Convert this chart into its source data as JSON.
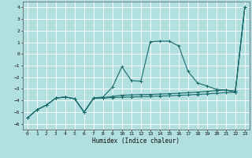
{
  "xlabel": "Humidex (Indice chaleur)",
  "xlim": [
    -0.5,
    23.5
  ],
  "ylim": [
    -6.5,
    4.5
  ],
  "yticks": [
    -6,
    -5,
    -4,
    -3,
    -2,
    -1,
    0,
    1,
    2,
    3,
    4
  ],
  "xticks": [
    0,
    1,
    2,
    3,
    4,
    5,
    6,
    7,
    8,
    9,
    10,
    11,
    12,
    13,
    14,
    15,
    16,
    17,
    18,
    19,
    20,
    21,
    22,
    23
  ],
  "bg_color": "#b2dfdf",
  "grid_color": "#d0eeee",
  "line_color": "#1a6b6b",
  "curve1_x": [
    0,
    1,
    2,
    3,
    4,
    5,
    6,
    7,
    8,
    9,
    10,
    11,
    12,
    13,
    14,
    15,
    16,
    17,
    18,
    19,
    20,
    21,
    22,
    23
  ],
  "curve1_y": [
    -5.5,
    -4.8,
    -4.4,
    -3.8,
    -3.7,
    -3.85,
    -5.0,
    -3.8,
    -3.7,
    -2.85,
    -1.1,
    -2.3,
    -2.35,
    1.05,
    1.1,
    1.1,
    0.7,
    -1.5,
    -2.5,
    -2.75,
    -3.05,
    -3.1,
    -3.3,
    4.0
  ],
  "curve2_x": [
    0,
    1,
    2,
    3,
    4,
    5,
    6,
    7,
    8,
    9,
    10,
    11,
    12,
    13,
    14,
    15,
    16,
    17,
    18,
    19,
    20,
    21,
    22,
    23
  ],
  "curve2_y": [
    -5.5,
    -4.8,
    -4.4,
    -3.8,
    -3.7,
    -3.85,
    -5.0,
    -3.8,
    -3.75,
    -3.65,
    -3.55,
    -3.52,
    -3.5,
    -3.48,
    -3.45,
    -3.42,
    -3.38,
    -3.33,
    -3.28,
    -3.22,
    -3.15,
    -3.1,
    -3.18,
    4.0
  ],
  "curve3_x": [
    0,
    1,
    2,
    3,
    4,
    5,
    6,
    7,
    8,
    9,
    10,
    11,
    12,
    13,
    14,
    15,
    16,
    17,
    18,
    19,
    20,
    21,
    22,
    23
  ],
  "curve3_y": [
    -5.5,
    -4.8,
    -4.4,
    -3.8,
    -3.7,
    -3.85,
    -5.0,
    -3.8,
    -3.8,
    -3.75,
    -3.72,
    -3.7,
    -3.68,
    -3.65,
    -3.62,
    -3.6,
    -3.56,
    -3.52,
    -3.48,
    -3.43,
    -3.38,
    -3.32,
    -3.3,
    4.0
  ]
}
